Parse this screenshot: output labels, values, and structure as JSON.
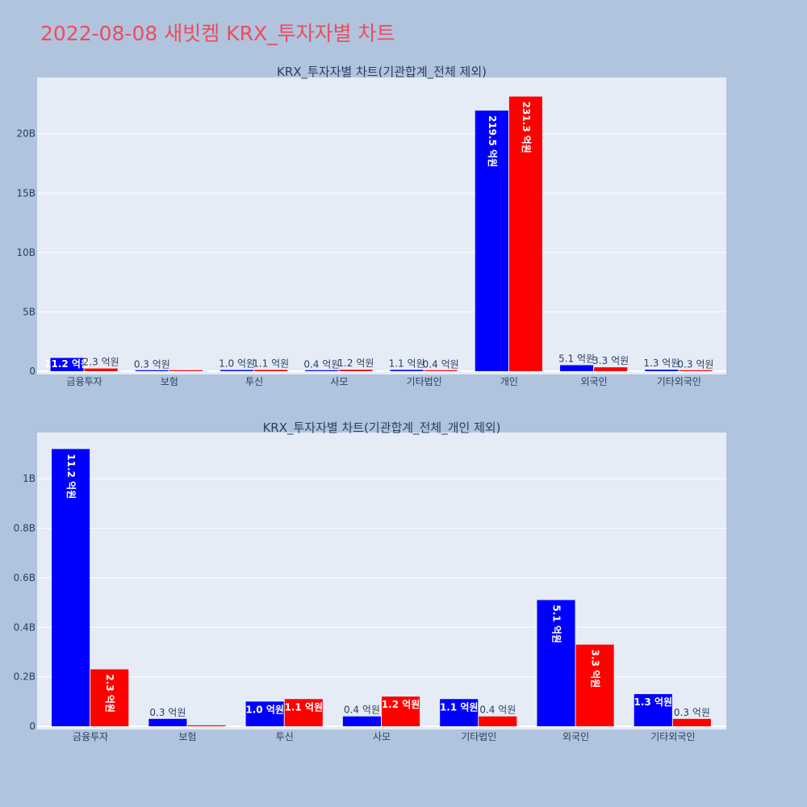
{
  "page_title": "2022-08-08 새빗켐 KRX_투자자별 차트",
  "colors": {
    "background": "#b0c4de",
    "plot_bg": "#e5ecf6",
    "title": "#ef4b5e",
    "sell": "#0000ff",
    "buy": "#ff0000"
  },
  "chart_data": [
    {
      "type": "bar",
      "title": "KRX_투자자별 차트(기관합계_전체 제외)",
      "categories": [
        "금융투자",
        "보험",
        "투신",
        "사모",
        "기타법인",
        "개인",
        "외국인",
        "기타외국인"
      ],
      "series": [
        {
          "color": "#0000ff",
          "values": [
            1.12,
            0.03,
            0.1,
            0.04,
            0.11,
            21.95,
            0.51,
            0.13
          ],
          "labels": [
            "11.2 억원",
            "0.3 억원",
            "1.0 억원",
            "0.4 억원",
            "1.1 억원",
            "219.5 억원",
            "5.1 억원",
            "1.3 억원"
          ]
        },
        {
          "color": "#ff0000",
          "values": [
            0.23,
            0,
            0.11,
            0.12,
            0.04,
            23.13,
            0.33,
            0.03
          ],
          "labels": [
            "2.3 억원",
            "",
            "1.1 억원",
            "1.2 억원",
            "0.4 억원",
            "231.3 억원",
            "3.3 억원",
            "0.3 억원"
          ]
        }
      ],
      "ylim": [
        0,
        24.6
      ],
      "yticks": [
        0,
        5,
        10,
        15,
        20
      ],
      "ytick_labels": [
        "0",
        "5B",
        "10B",
        "15B",
        "20B"
      ],
      "grid": true
    },
    {
      "type": "bar",
      "title": "KRX_투자자별 차트(기관합계_전체_개인 제외)",
      "categories": [
        "금융투자",
        "보험",
        "투신",
        "사모",
        "기타법인",
        "외국인",
        "기타외국인"
      ],
      "series": [
        {
          "color": "#0000ff",
          "values": [
            1.12,
            0.03,
            0.1,
            0.04,
            0.11,
            0.51,
            0.13
          ],
          "labels": [
            "11.2 억원",
            "0.3 억원",
            "1.0 억원",
            "0.4 억원",
            "1.1 억원",
            "5.1 억원",
            "1.3 억원"
          ]
        },
        {
          "color": "#ff0000",
          "values": [
            0.23,
            0,
            0.11,
            0.12,
            0.04,
            0.33,
            0.03
          ],
          "labels": [
            "2.3 억원",
            "",
            "1.1 억원",
            "1.2 억원",
            "0.4 억원",
            "3.3 억원",
            "0.3 억원"
          ]
        }
      ],
      "ylim": [
        0,
        1.18
      ],
      "yticks": [
        0,
        0.2,
        0.4,
        0.6,
        0.8,
        1
      ],
      "ytick_labels": [
        "0",
        "0.2B",
        "0.4B",
        "0.6B",
        "0.8B",
        "1B"
      ],
      "grid": true
    }
  ]
}
